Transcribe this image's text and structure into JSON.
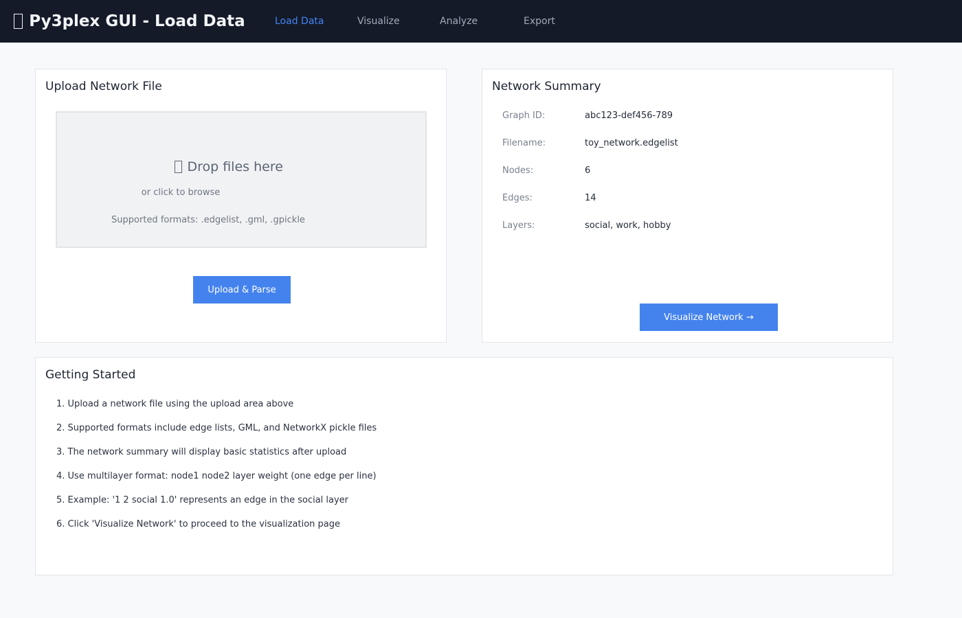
{
  "header": {
    "title": "Py3plex GUI - Load Data",
    "nav": [
      {
        "label": "Load Data",
        "active": true
      },
      {
        "label": "Visualize",
        "active": false
      },
      {
        "label": "Analyze",
        "active": false
      },
      {
        "label": "Export",
        "active": false
      }
    ]
  },
  "upload_card": {
    "title": "Upload Network File",
    "dropzone": {
      "line1": "Drop files here",
      "line2": "or click to browse",
      "line3": "Supported formats: .edgelist, .gml, .gpickle"
    },
    "button_label": "Upload & Parse"
  },
  "summary_card": {
    "title": "Network Summary",
    "rows": [
      {
        "label": "Graph ID:",
        "value": "abc123-def456-789"
      },
      {
        "label": "Filename:",
        "value": "toy_network.edgelist"
      },
      {
        "label": "Nodes:",
        "value": "6"
      },
      {
        "label": "Edges:",
        "value": "14"
      },
      {
        "label": "Layers:",
        "value": "social, work, hobby"
      }
    ],
    "button_label": "Visualize Network →"
  },
  "getting_started": {
    "title": "Getting Started",
    "items": [
      "Upload a network file using the upload area above",
      "Supported formats include edge lists, GML, and NetworkX pickle files",
      "The network summary will display basic statistics after upload",
      "Use multilayer format: node1 node2 layer weight (one edge per line)",
      "Example: '1 2 social 1.0' represents an edge in the social layer",
      "Click 'Visualize Network' to proceed to the visualization page"
    ]
  },
  "icons": {
    "app_logo": "missing-glyph-box",
    "drop_files": "missing-glyph-box"
  },
  "colors": {
    "header_bg": "#141a28",
    "accent_blue": "#4483ee",
    "nav_active": "#4384f4",
    "page_bg": "#f8f9fb",
    "card_border": "#e3e5ea",
    "dropzone_bg": "#f1f2f4"
  }
}
